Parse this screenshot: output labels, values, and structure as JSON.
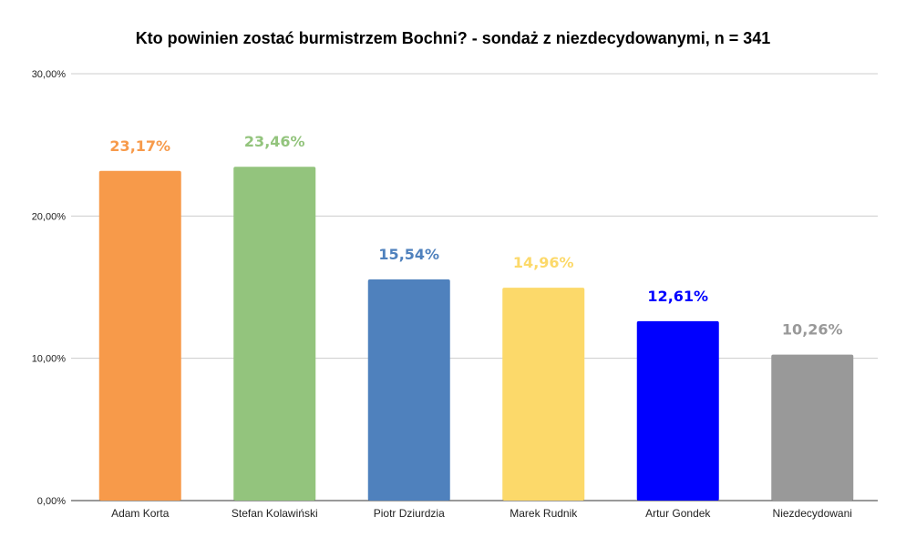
{
  "chart_data": {
    "type": "bar",
    "title": "Kto powinien zostać burmistrzem Bochni? - sondaż z niezdecydowanymi, n = 341",
    "categories": [
      "Adam Korta",
      "Stefan Kolawiński",
      "Piotr Dziurdzia",
      "Marek Rudnik",
      "Artur Gondek",
      "Niezdecydowani"
    ],
    "values": [
      23.17,
      23.46,
      15.54,
      14.96,
      12.61,
      10.26
    ],
    "data_labels": [
      "23,17%",
      "23,46%",
      "15,54%",
      "14,96%",
      "12,61%",
      "10,26%"
    ],
    "colors": [
      "#f79a4a",
      "#93c47d",
      "#4f81bd",
      "#fcd96a",
      "#0000ff",
      "#999999"
    ],
    "xlabel": "",
    "ylabel": "",
    "ylim": [
      0,
      30
    ],
    "yticks": [
      0,
      10,
      20,
      30
    ],
    "ytick_labels": [
      "0,00%",
      "10,00%",
      "20,00%",
      "30,00%"
    ],
    "grid": true,
    "legend": "none",
    "gridline_color": "#cccccc",
    "axis_color": "#333333"
  }
}
